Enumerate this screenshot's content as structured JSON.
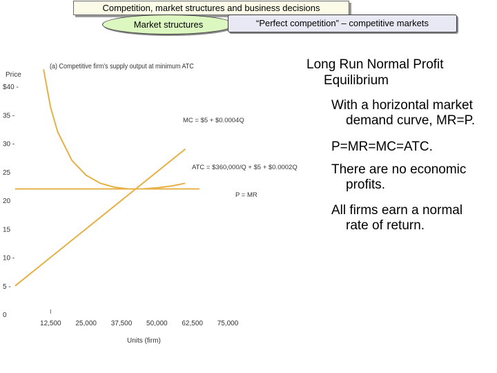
{
  "header": {
    "title": "Competition, market structures and business decisions",
    "tab_oval": "Market structures",
    "tab_rect": "“Perfect competition” – competitive markets"
  },
  "content": {
    "heading_line1": "Long Run Normal Profit",
    "heading_line2": "Equilibrium",
    "bullets": [
      {
        "line1": "With a horizontal market",
        "line2": "demand curve, MR=P."
      },
      {
        "line1": "P=MR=MC=ATC.",
        "line2": ""
      },
      {
        "line1": "There are no economic",
        "line2": "profits."
      },
      {
        "line1": "All firms earn a normal",
        "line2": "rate of return."
      }
    ]
  },
  "chart_data": {
    "type": "line",
    "title": "(a) Competitive firm's supply output at minimum ATC",
    "xlabel": "Units (firm)",
    "ylabel": "Price",
    "xlim": [
      0,
      75000
    ],
    "ylim": [
      0,
      40
    ],
    "x_ticks": [
      12500,
      25000,
      37500,
      50000,
      62500,
      75000
    ],
    "x_tick_labels": [
      "12,500",
      "25,000",
      "37,500",
      "50,000",
      "62,500",
      "75,000"
    ],
    "y_ticks": [
      0,
      5,
      10,
      15,
      20,
      25,
      30,
      35,
      40
    ],
    "y_tick_labels": [
      "0",
      "5 -",
      "10 -",
      "15",
      "20",
      "25",
      "30 -",
      "35 -",
      "$40 -"
    ],
    "series": [
      {
        "name": "MC = $5 + $0.0004Q",
        "color": "#e6b045",
        "x": [
          0,
          60000
        ],
        "y": [
          5,
          29
        ]
      },
      {
        "name": "ATC = $360,000/Q + $5 + $0.0002Q",
        "color": "#e6b045",
        "x": [
          10000,
          12500,
          15000,
          20000,
          25000,
          30000,
          35000,
          40000,
          45000,
          50000,
          55000,
          60000
        ],
        "y": [
          43,
          36.3,
          32,
          27,
          24.4,
          23,
          22.3,
          22,
          22,
          22.2,
          22.5,
          23
        ]
      },
      {
        "name": "P = MR",
        "color": "#e6b045",
        "x": [
          0,
          65000
        ],
        "y": [
          22,
          22
        ]
      }
    ]
  }
}
